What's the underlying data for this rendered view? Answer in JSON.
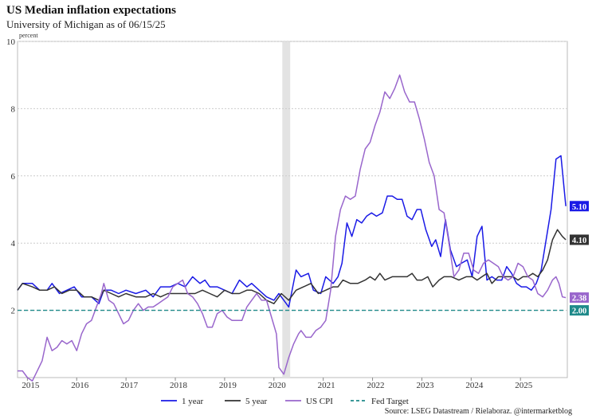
{
  "chart_data": {
    "type": "line",
    "title": "US Median inflation expectations",
    "subtitle": "University of Michigan as of 06/15/25",
    "ylabel": "percent",
    "ylim": [
      0,
      10
    ],
    "yticks": [
      2,
      4,
      6,
      8,
      10
    ],
    "xlim": [
      2014.8,
      2025.5
    ],
    "xticks": [
      2015,
      2016,
      2017,
      2018,
      2019,
      2020,
      2021,
      2022,
      2023,
      2024,
      2025
    ],
    "grid": true,
    "legend_position": "bottom",
    "recession_band": [
      2020.17,
      2020.33
    ],
    "source": "Source: LSEG Datastream / Rielaboraz. @intermarketblog",
    "series": [
      {
        "name": "1 year",
        "color": "#1a1ae6",
        "end_label": "5.10",
        "points": [
          [
            2014.8,
            2.6
          ],
          [
            2014.9,
            2.8
          ],
          [
            2015.1,
            2.8
          ],
          [
            2015.25,
            2.6
          ],
          [
            2015.4,
            2.6
          ],
          [
            2015.5,
            2.8
          ],
          [
            2015.65,
            2.5
          ],
          [
            2015.8,
            2.6
          ],
          [
            2015.95,
            2.7
          ],
          [
            2016.1,
            2.4
          ],
          [
            2016.3,
            2.4
          ],
          [
            2016.45,
            2.2
          ],
          [
            2016.55,
            2.6
          ],
          [
            2016.7,
            2.6
          ],
          [
            2016.85,
            2.5
          ],
          [
            2017.0,
            2.6
          ],
          [
            2017.2,
            2.5
          ],
          [
            2017.4,
            2.6
          ],
          [
            2017.55,
            2.4
          ],
          [
            2017.7,
            2.7
          ],
          [
            2017.9,
            2.7
          ],
          [
            2018.05,
            2.8
          ],
          [
            2018.2,
            2.7
          ],
          [
            2018.35,
            3.0
          ],
          [
            2018.5,
            2.8
          ],
          [
            2018.6,
            2.9
          ],
          [
            2018.7,
            2.7
          ],
          [
            2018.85,
            2.7
          ],
          [
            2019.0,
            2.6
          ],
          [
            2019.15,
            2.5
          ],
          [
            2019.3,
            2.9
          ],
          [
            2019.45,
            2.7
          ],
          [
            2019.55,
            2.8
          ],
          [
            2019.7,
            2.6
          ],
          [
            2019.85,
            2.4
          ],
          [
            2020.0,
            2.3
          ],
          [
            2020.1,
            2.5
          ],
          [
            2020.2,
            2.3
          ],
          [
            2020.3,
            2.1
          ],
          [
            2020.45,
            3.2
          ],
          [
            2020.55,
            3.0
          ],
          [
            2020.7,
            3.1
          ],
          [
            2020.8,
            2.6
          ],
          [
            2020.95,
            2.5
          ],
          [
            2021.05,
            3.0
          ],
          [
            2021.2,
            2.8
          ],
          [
            2021.3,
            3.0
          ],
          [
            2021.38,
            3.4
          ],
          [
            2021.48,
            4.6
          ],
          [
            2021.58,
            4.2
          ],
          [
            2021.68,
            4.7
          ],
          [
            2021.78,
            4.6
          ],
          [
            2021.88,
            4.8
          ],
          [
            2021.98,
            4.9
          ],
          [
            2022.08,
            4.8
          ],
          [
            2022.2,
            4.9
          ],
          [
            2022.3,
            5.4
          ],
          [
            2022.4,
            5.4
          ],
          [
            2022.5,
            5.3
          ],
          [
            2022.6,
            5.3
          ],
          [
            2022.7,
            4.8
          ],
          [
            2022.8,
            4.7
          ],
          [
            2022.9,
            5.0
          ],
          [
            2022.98,
            5.0
          ],
          [
            2023.08,
            4.4
          ],
          [
            2023.2,
            3.9
          ],
          [
            2023.28,
            4.1
          ],
          [
            2023.38,
            3.6
          ],
          [
            2023.48,
            4.7
          ],
          [
            2023.58,
            3.8
          ],
          [
            2023.7,
            3.3
          ],
          [
            2023.8,
            3.4
          ],
          [
            2023.92,
            3.5
          ],
          [
            2024.02,
            3.0
          ],
          [
            2024.12,
            4.2
          ],
          [
            2024.22,
            4.5
          ],
          [
            2024.32,
            2.9
          ],
          [
            2024.42,
            3.0
          ],
          [
            2024.52,
            2.9
          ],
          [
            2024.62,
            2.9
          ],
          [
            2024.72,
            3.3
          ],
          [
            2024.82,
            3.1
          ],
          [
            2024.92,
            2.8
          ],
          [
            2025.02,
            2.7
          ],
          [
            2025.12,
            2.7
          ],
          [
            2025.22,
            2.6
          ],
          [
            2025.32,
            2.8
          ],
          [
            2025.42,
            3.2
          ],
          [
            2025.52,
            4.1
          ],
          [
            2025.62,
            5.0
          ],
          [
            2025.72,
            6.5
          ],
          [
            2025.82,
            6.6
          ],
          [
            2025.92,
            5.1
          ]
        ]
      },
      {
        "name": "5 year",
        "color": "#333333",
        "end_label": "4.10",
        "points": [
          [
            2014.8,
            2.6
          ],
          [
            2014.9,
            2.8
          ],
          [
            2015.1,
            2.7
          ],
          [
            2015.25,
            2.6
          ],
          [
            2015.4,
            2.6
          ],
          [
            2015.55,
            2.7
          ],
          [
            2015.7,
            2.5
          ],
          [
            2015.85,
            2.6
          ],
          [
            2016.0,
            2.6
          ],
          [
            2016.15,
            2.4
          ],
          [
            2016.3,
            2.4
          ],
          [
            2016.45,
            2.3
          ],
          [
            2016.55,
            2.6
          ],
          [
            2016.7,
            2.5
          ],
          [
            2016.85,
            2.4
          ],
          [
            2017.0,
            2.5
          ],
          [
            2017.2,
            2.4
          ],
          [
            2017.4,
            2.4
          ],
          [
            2017.55,
            2.5
          ],
          [
            2017.7,
            2.4
          ],
          [
            2017.85,
            2.5
          ],
          [
            2018.0,
            2.5
          ],
          [
            2018.2,
            2.5
          ],
          [
            2018.4,
            2.5
          ],
          [
            2018.55,
            2.6
          ],
          [
            2018.7,
            2.5
          ],
          [
            2018.85,
            2.4
          ],
          [
            2019.0,
            2.6
          ],
          [
            2019.15,
            2.5
          ],
          [
            2019.3,
            2.5
          ],
          [
            2019.45,
            2.6
          ],
          [
            2019.55,
            2.6
          ],
          [
            2019.7,
            2.5
          ],
          [
            2019.85,
            2.3
          ],
          [
            2020.0,
            2.2
          ],
          [
            2020.15,
            2.5
          ],
          [
            2020.3,
            2.3
          ],
          [
            2020.45,
            2.6
          ],
          [
            2020.6,
            2.7
          ],
          [
            2020.75,
            2.8
          ],
          [
            2020.9,
            2.5
          ],
          [
            2021.05,
            2.6
          ],
          [
            2021.2,
            2.7
          ],
          [
            2021.3,
            2.7
          ],
          [
            2021.4,
            2.9
          ],
          [
            2021.55,
            2.8
          ],
          [
            2021.7,
            2.8
          ],
          [
            2021.85,
            2.9
          ],
          [
            2021.95,
            3.0
          ],
          [
            2022.05,
            2.9
          ],
          [
            2022.15,
            3.1
          ],
          [
            2022.25,
            2.9
          ],
          [
            2022.4,
            3.0
          ],
          [
            2022.55,
            3.0
          ],
          [
            2022.7,
            3.0
          ],
          [
            2022.8,
            3.1
          ],
          [
            2022.9,
            2.9
          ],
          [
            2023.0,
            2.9
          ],
          [
            2023.12,
            3.0
          ],
          [
            2023.22,
            2.7
          ],
          [
            2023.35,
            2.9
          ],
          [
            2023.45,
            3.0
          ],
          [
            2023.6,
            3.0
          ],
          [
            2023.75,
            2.9
          ],
          [
            2023.9,
            3.0
          ],
          [
            2024.02,
            3.0
          ],
          [
            2024.12,
            2.9
          ],
          [
            2024.22,
            3.0
          ],
          [
            2024.32,
            3.1
          ],
          [
            2024.42,
            2.8
          ],
          [
            2024.55,
            3.0
          ],
          [
            2024.7,
            3.0
          ],
          [
            2024.85,
            3.0
          ],
          [
            2024.95,
            2.9
          ],
          [
            2025.05,
            3.0
          ],
          [
            2025.15,
            3.0
          ],
          [
            2025.25,
            3.1
          ],
          [
            2025.35,
            3.0
          ],
          [
            2025.45,
            3.2
          ],
          [
            2025.55,
            3.5
          ],
          [
            2025.65,
            4.1
          ],
          [
            2025.75,
            4.4
          ],
          [
            2025.85,
            4.2
          ],
          [
            2025.92,
            4.1
          ]
        ]
      },
      {
        "name": "US CPI",
        "color": "#9966cc",
        "end_label": "2.38",
        "points": [
          [
            2014.8,
            0.2
          ],
          [
            2014.9,
            0.2
          ],
          [
            2015.0,
            0.0
          ],
          [
            2015.1,
            -0.1
          ],
          [
            2015.2,
            0.2
          ],
          [
            2015.3,
            0.5
          ],
          [
            2015.4,
            1.2
          ],
          [
            2015.5,
            0.8
          ],
          [
            2015.6,
            0.9
          ],
          [
            2015.7,
            1.1
          ],
          [
            2015.8,
            1.0
          ],
          [
            2015.9,
            1.1
          ],
          [
            2016.0,
            0.8
          ],
          [
            2016.1,
            1.3
          ],
          [
            2016.2,
            1.6
          ],
          [
            2016.3,
            1.7
          ],
          [
            2016.4,
            2.1
          ],
          [
            2016.5,
            2.5
          ],
          [
            2016.55,
            2.8
          ],
          [
            2016.65,
            2.3
          ],
          [
            2016.75,
            2.2
          ],
          [
            2016.85,
            1.9
          ],
          [
            2016.95,
            1.6
          ],
          [
            2017.05,
            1.7
          ],
          [
            2017.15,
            2.0
          ],
          [
            2017.25,
            2.2
          ],
          [
            2017.35,
            2.0
          ],
          [
            2017.45,
            2.1
          ],
          [
            2017.55,
            2.1
          ],
          [
            2017.65,
            2.2
          ],
          [
            2017.75,
            2.3
          ],
          [
            2017.85,
            2.4
          ],
          [
            2017.95,
            2.7
          ],
          [
            2018.05,
            2.8
          ],
          [
            2018.15,
            2.9
          ],
          [
            2018.25,
            2.5
          ],
          [
            2018.35,
            2.4
          ],
          [
            2018.45,
            2.2
          ],
          [
            2018.55,
            1.9
          ],
          [
            2018.65,
            1.5
          ],
          [
            2018.75,
            1.5
          ],
          [
            2018.85,
            1.9
          ],
          [
            2018.95,
            2.0
          ],
          [
            2019.05,
            1.8
          ],
          [
            2019.15,
            1.7
          ],
          [
            2019.25,
            1.7
          ],
          [
            2019.35,
            1.7
          ],
          [
            2019.45,
            2.1
          ],
          [
            2019.55,
            2.3
          ],
          [
            2019.65,
            2.5
          ],
          [
            2019.75,
            2.3
          ],
          [
            2019.85,
            2.3
          ],
          [
            2019.95,
            1.8
          ],
          [
            2020.05,
            1.3
          ],
          [
            2020.1,
            0.3
          ],
          [
            2020.2,
            0.1
          ],
          [
            2020.3,
            0.6
          ],
          [
            2020.4,
            1.0
          ],
          [
            2020.5,
            1.3
          ],
          [
            2020.55,
            1.4
          ],
          [
            2020.65,
            1.2
          ],
          [
            2020.75,
            1.2
          ],
          [
            2020.85,
            1.4
          ],
          [
            2020.95,
            1.5
          ],
          [
            2021.05,
            1.7
          ],
          [
            2021.15,
            2.6
          ],
          [
            2021.25,
            4.2
          ],
          [
            2021.35,
            5.0
          ],
          [
            2021.45,
            5.4
          ],
          [
            2021.55,
            5.3
          ],
          [
            2021.65,
            5.4
          ],
          [
            2021.75,
            6.2
          ],
          [
            2021.85,
            6.8
          ],
          [
            2021.95,
            7.0
          ],
          [
            2022.05,
            7.5
          ],
          [
            2022.15,
            7.9
          ],
          [
            2022.25,
            8.5
          ],
          [
            2022.35,
            8.3
          ],
          [
            2022.45,
            8.6
          ],
          [
            2022.55,
            9.0
          ],
          [
            2022.65,
            8.5
          ],
          [
            2022.75,
            8.2
          ],
          [
            2022.85,
            8.2
          ],
          [
            2022.95,
            7.7
          ],
          [
            2023.05,
            7.1
          ],
          [
            2023.15,
            6.4
          ],
          [
            2023.25,
            6.0
          ],
          [
            2023.35,
            5.0
          ],
          [
            2023.45,
            4.9
          ],
          [
            2023.55,
            4.0
          ],
          [
            2023.65,
            3.0
          ],
          [
            2023.75,
            3.2
          ],
          [
            2023.85,
            3.7
          ],
          [
            2023.95,
            3.7
          ],
          [
            2024.05,
            3.2
          ],
          [
            2024.15,
            3.1
          ],
          [
            2024.25,
            3.4
          ],
          [
            2024.35,
            3.5
          ],
          [
            2024.45,
            3.4
          ],
          [
            2024.55,
            3.3
          ],
          [
            2024.65,
            3.0
          ],
          [
            2024.75,
            2.9
          ],
          [
            2024.85,
            3.0
          ],
          [
            2024.95,
            3.4
          ],
          [
            2025.05,
            3.3
          ],
          [
            2025.15,
            3.0
          ],
          [
            2025.25,
            2.9
          ],
          [
            2025.35,
            2.5
          ],
          [
            2025.45,
            2.4
          ],
          [
            2025.55,
            2.6
          ],
          [
            2025.65,
            2.9
          ],
          [
            2025.72,
            3.0
          ],
          [
            2025.78,
            2.8
          ],
          [
            2025.85,
            2.4
          ],
          [
            2025.92,
            2.38
          ]
        ]
      },
      {
        "name": "Fed Target",
        "color": "#1f8a8a",
        "dashed": true,
        "end_label": "2.00",
        "points": [
          [
            2014.8,
            2.0
          ],
          [
            2025.92,
            2.0
          ]
        ]
      }
    ]
  }
}
